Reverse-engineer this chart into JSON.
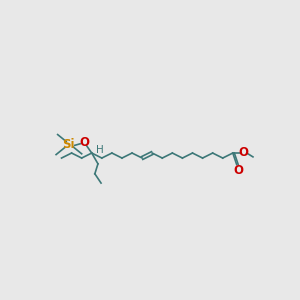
{
  "background_color": "#e8e8e8",
  "chain_color": "#3d7878",
  "O_color": "#cc0000",
  "Si_color": "#cc8800",
  "line_width": 1.2,
  "font_size": 7.5,
  "fig_width": 3.0,
  "fig_height": 3.0,
  "dpi": 100,
  "xlim": [
    0,
    300
  ],
  "ylim": [
    0,
    300
  ],
  "ester_x": 252,
  "ester_y": 148,
  "step_x": 13.0,
  "step_y": 6.5,
  "n_chain": 18,
  "db_idx": 8,
  "c15_idx": 14
}
